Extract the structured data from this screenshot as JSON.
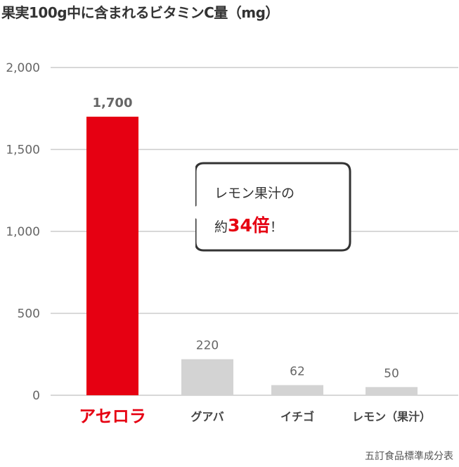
{
  "title": "果実100g中に含まれるビタミンC量（mg）",
  "source": "五訂食品標準成分表",
  "callout": {
    "line1": "レモン果汁の",
    "prefix": "約",
    "emphasis": "34倍",
    "suffix": "！"
  },
  "colors": {
    "highlight": "#e60012",
    "bar": "#d3d3d3",
    "grid": "#cccccc",
    "axis_text": "#666666"
  },
  "chart_data": {
    "type": "bar",
    "categories": [
      "アセロラ",
      "グアバ",
      "イチゴ",
      "レモン（果汁）"
    ],
    "values": [
      1700,
      220,
      62,
      50
    ],
    "value_labels": [
      "1,700",
      "220",
      "62",
      "50"
    ],
    "highlight_index": 0,
    "yticks": [
      0,
      500,
      1000,
      1500,
      2000
    ],
    "ytick_labels": [
      "0",
      "500",
      "1,000",
      "1,500",
      "2,000"
    ],
    "ylim": [
      0,
      2000
    ],
    "grid": true,
    "title": "果実100g中に含まれるビタミンC量（mg）"
  }
}
